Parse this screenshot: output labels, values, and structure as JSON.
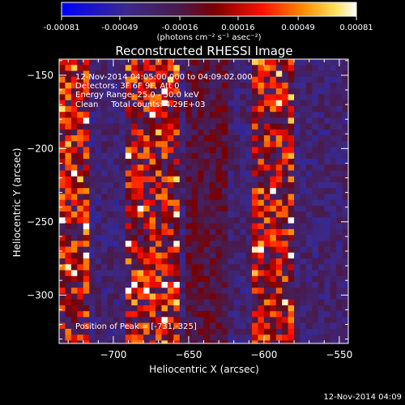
{
  "colorbar": {
    "ticks": [
      "-0.00081",
      "-0.00049",
      "-0.00016",
      "0.00016",
      "0.00049",
      "0.00081"
    ],
    "tick_values": [
      -0.00081,
      -0.00049,
      -0.00016,
      0.00016,
      0.00049,
      0.00081
    ],
    "range": [
      -0.00081,
      0.00081
    ],
    "units_label": "(photons cm⁻² s⁻¹ asec⁻²)"
  },
  "title": "Reconstructed RHESSI Image",
  "info": {
    "line1": "12-Nov-2014 04:05:00.000 to 04:09:02.000",
    "line2": "Detectors: 3F 6F 9F, Att 0",
    "line3": "Energy Range: 25.0 - 50.0 keV",
    "line4": "Clean     Total counts: 4.29E+03"
  },
  "peak_label": "Position of Peak = [-731,-325]",
  "footer_date": "12-Nov-2014 04:09",
  "chart_data": {
    "type": "heatmap",
    "title": "Reconstructed RHESSI Image",
    "xlabel": "Heliocentric X (arcsec)",
    "ylabel": "Heliocentric Y (arcsec)",
    "xlim": [
      -736,
      -544
    ],
    "ylim": [
      -333,
      -139
    ],
    "x_ticks": [
      -700,
      -650,
      -600,
      -550
    ],
    "y_ticks": [
      -150,
      -200,
      -250,
      -300
    ],
    "x_tick_labels": [
      "−700",
      "−650",
      "−600",
      "−550"
    ],
    "y_tick_labels": [
      "−150",
      "−200",
      "−250",
      "−300"
    ],
    "colormap": "blue-purple-red-yellow-white",
    "value_range": [
      -0.00081,
      0.00081
    ],
    "peak_position": [
      -731,
      -325
    ],
    "bands": [
      {
        "x_range": [
          -736,
          -715
        ],
        "level": "high"
      },
      {
        "x_range": [
          -712,
          -695
        ],
        "level": "low"
      },
      {
        "x_range": [
          -690,
          -655
        ],
        "level": "high"
      },
      {
        "x_range": [
          -650,
          -625
        ],
        "level": "medium"
      },
      {
        "x_range": [
          -625,
          -608
        ],
        "level": "low"
      },
      {
        "x_range": [
          -608,
          -580
        ],
        "level": "high"
      },
      {
        "x_range": [
          -580,
          -544
        ],
        "level": "low"
      }
    ]
  },
  "colors": {
    "background": "#000000",
    "foreground": "#ffffff",
    "cmap_low": "#0000ff",
    "cmap_mid": "#4b1e6e",
    "cmap_high": "#ff0000",
    "cmap_top": "#ffffff"
  }
}
